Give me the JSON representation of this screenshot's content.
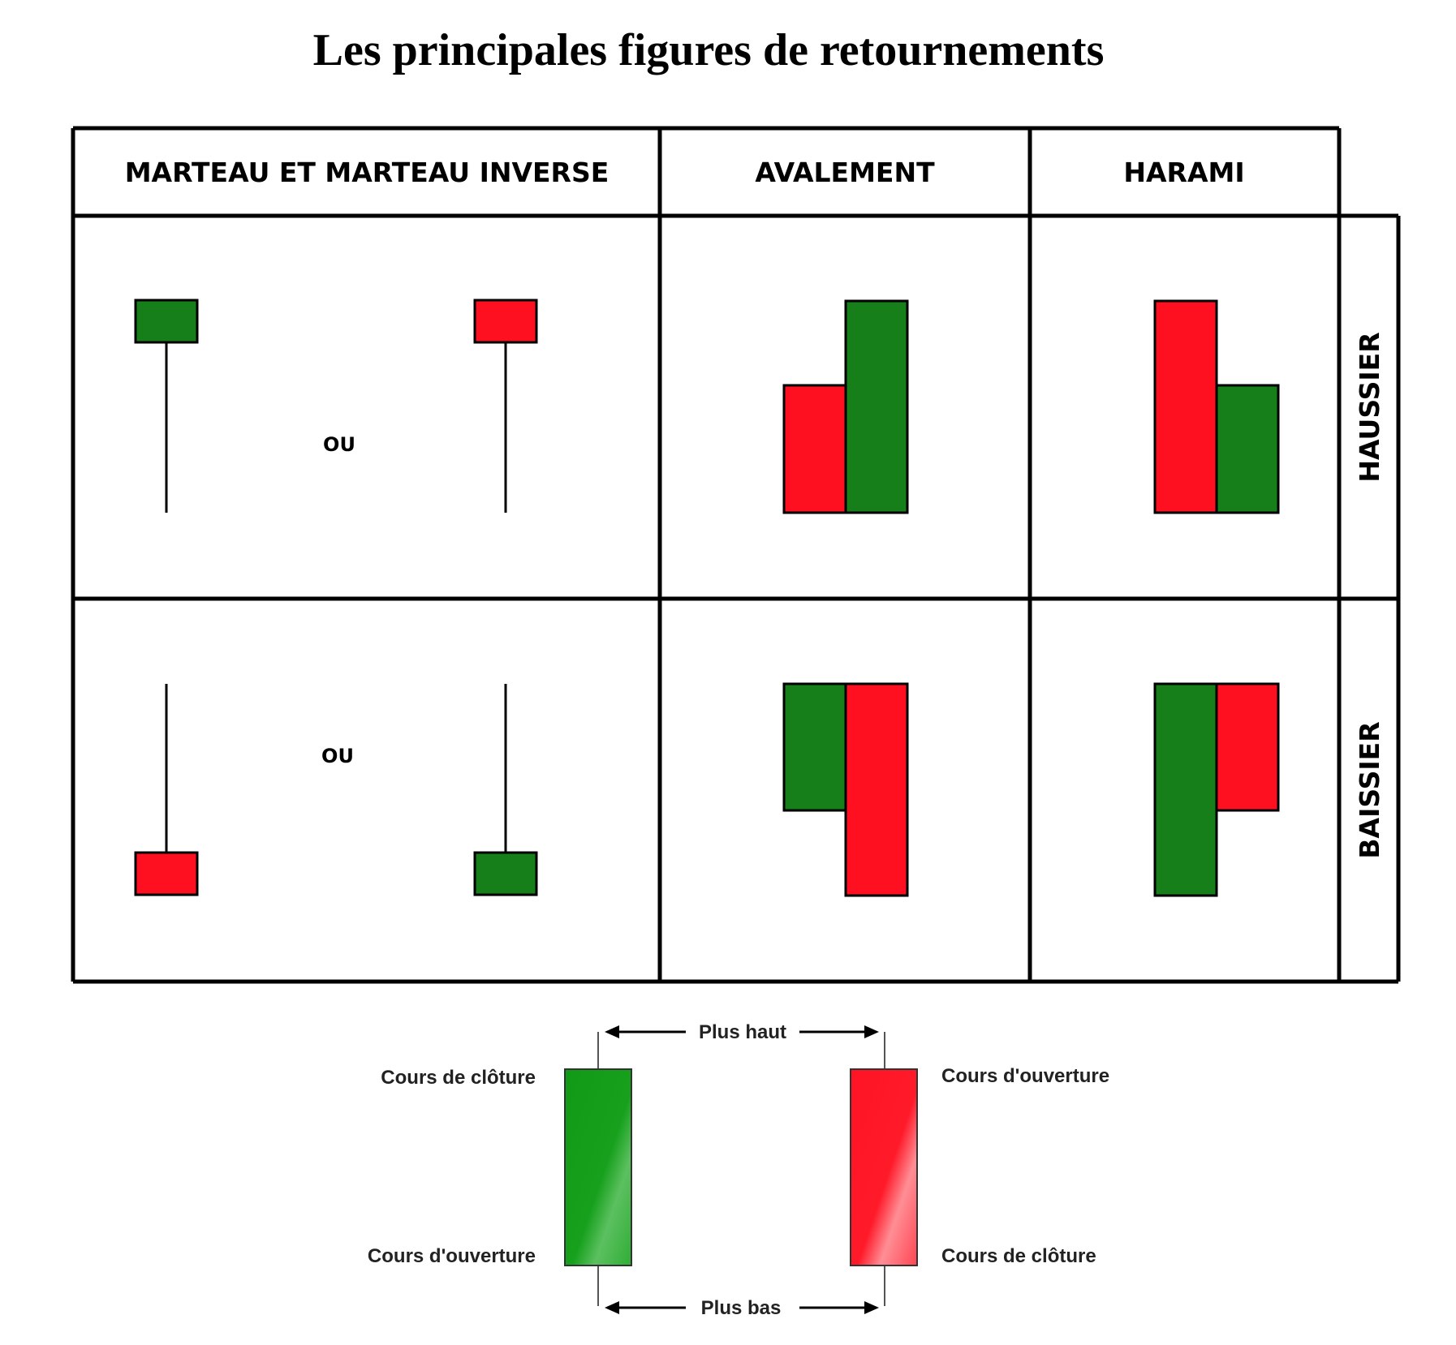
{
  "title": "Les principales figures de retournements",
  "columns": [
    {
      "label": "MARTEAU ET MARTEAU INVERSE"
    },
    {
      "label": "AVALEMENT"
    },
    {
      "label": "HARAMI"
    }
  ],
  "rows": [
    {
      "label": "HAUSSIER",
      "separator": "OU"
    },
    {
      "label": "BAISSIER",
      "separator": "OU"
    }
  ],
  "legend": {
    "top": "Plus haut",
    "bottom": "Plus bas",
    "bull_close": "Cours de clôture",
    "bull_open": "Cours d'ouverture",
    "bear_open": "Cours d'ouverture",
    "bear_close": "Cours de clôture"
  },
  "colors": {
    "bull": "#167f1a",
    "bear": "#ff1020",
    "legend_bull": "#17a01d",
    "legend_bear": "#ff1a2a"
  }
}
